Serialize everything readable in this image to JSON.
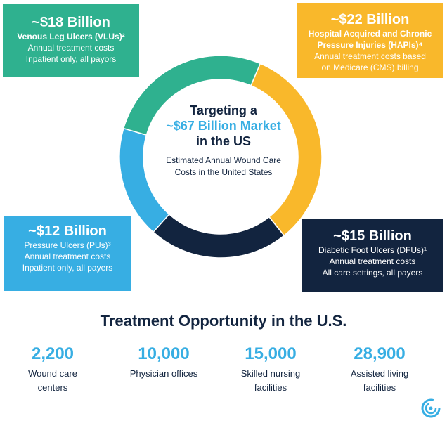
{
  "chart_data": {
    "type": "pie",
    "donut": true,
    "center": {
      "line1": "Targeting a",
      "line2": "~$67 Billion Market",
      "line3": "in the US",
      "subtitle_line1": "Estimated Annual Wound Care",
      "subtitle_line2": "Costs in the United States"
    },
    "segments": [
      {
        "key": "hapi",
        "value": 22,
        "color": "#f9b82b",
        "amount": "~$22 Billion",
        "name_lines": [
          "Hospital Acquired and Chronic",
          "Pressure Injuries (HAPIs)⁴"
        ],
        "detail_lines": [
          "Annual treatment costs based",
          "on Medicare (CMS) billing"
        ]
      },
      {
        "key": "dfu",
        "value": 15,
        "color": "#12243f",
        "amount": "~$15 Billion",
        "name_lines": [
          "Diabetic Foot Ulcers (DFUs)¹"
        ],
        "detail_lines": [
          "Annual treatment costs",
          "All care settings, all payers"
        ]
      },
      {
        "key": "pu",
        "value": 12,
        "color": "#37aee3",
        "amount": "~$12 Billion",
        "name_lines": [
          "Pressure Ulcers (PUs)³"
        ],
        "detail_lines": [
          "Annual treatment costs",
          "Inpatient only, all payers"
        ]
      },
      {
        "key": "vlu",
        "value": 18,
        "color": "#2fb18f",
        "amount": "~$18 Billion",
        "name_lines": [
          "Venous Leg Ulcers (VLUs)²"
        ],
        "detail_lines": [
          "Annual treatment costs",
          "Inpatient only, all payors"
        ]
      }
    ]
  },
  "opportunity": {
    "heading": "Treatment Opportunity in the U.S.",
    "stats": [
      {
        "number": "2,200",
        "label_lines": [
          "Wound care",
          "centers"
        ]
      },
      {
        "number": "10,000",
        "label_lines": [
          "Physician offices"
        ]
      },
      {
        "number": "15,000",
        "label_lines": [
          "Skilled nursing",
          "facilities"
        ]
      },
      {
        "number": "28,900",
        "label_lines": [
          "Assisted living",
          "facilities"
        ]
      }
    ]
  },
  "logo": {
    "icon": "company-logo-icon",
    "color": "#37aee3"
  }
}
